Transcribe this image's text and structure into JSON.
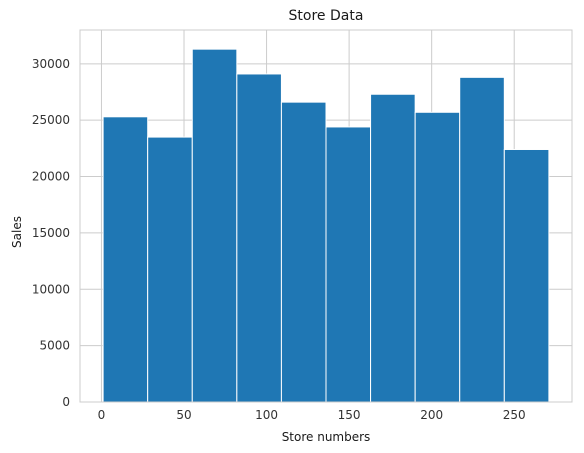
{
  "chart_data": {
    "type": "bar",
    "title": "Store Data",
    "xlabel": "Store numbers",
    "ylabel": "Sales",
    "bin_edges": [
      1,
      28,
      55,
      82,
      109,
      136,
      163,
      190,
      217,
      244,
      271
    ],
    "values": [
      25300,
      23500,
      31300,
      29100,
      26600,
      24400,
      27300,
      25700,
      28800,
      22400
    ],
    "xlim": [
      -13,
      285
    ],
    "ylim": [
      0,
      33000
    ],
    "xticks": [
      0,
      50,
      100,
      150,
      200,
      250
    ],
    "yticks": [
      0,
      5000,
      10000,
      15000,
      20000,
      25000,
      30000
    ],
    "grid": true,
    "bar_color": "#1f77b4",
    "edge_color": "#ffffff",
    "grid_color": "#cccccc",
    "background": "#ffffff"
  }
}
